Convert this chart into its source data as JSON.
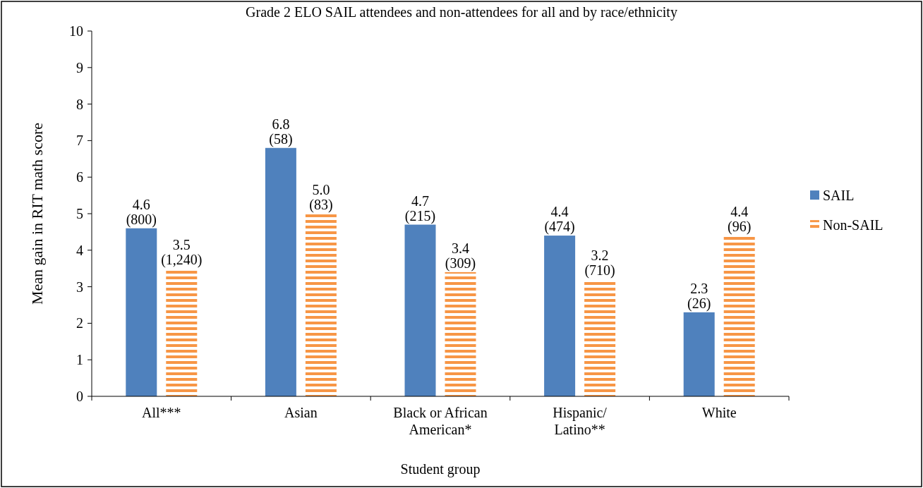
{
  "chart_data": {
    "type": "bar",
    "title": "Grade 2 ELO SAIL attendees and non-attendees for all and by race/ethnicity",
    "xlabel": "Student group",
    "ylabel": "Mean gain in RIT math score",
    "categories": [
      "All***",
      "Asian",
      "Black or African\nAmerican*",
      "Hispanic/\nLatino**",
      "White"
    ],
    "series": [
      {
        "name": "SAIL",
        "color": "#4f81bd",
        "values": [
          4.6,
          6.8,
          4.7,
          4.4,
          2.3
        ],
        "value_labels": [
          "4.6\n(800)",
          "6.8\n(58)",
          "4.7\n(215)",
          "4.4\n(474)",
          "2.3\n(26)"
        ]
      },
      {
        "name": "Non-SAIL",
        "color": "#f79646",
        "values": [
          3.5,
          5.0,
          3.4,
          3.2,
          4.4
        ],
        "value_labels": [
          "3.5\n(1,240)",
          "5.0\n(83)",
          "3.4\n(309)",
          "3.2\n(710)",
          "4.4\n(96)"
        ]
      }
    ],
    "ylim": [
      0,
      10
    ],
    "yticks": [
      0,
      1,
      2,
      3,
      4,
      5,
      6,
      7,
      8,
      9,
      10
    ],
    "grid": false,
    "legend": "right"
  }
}
